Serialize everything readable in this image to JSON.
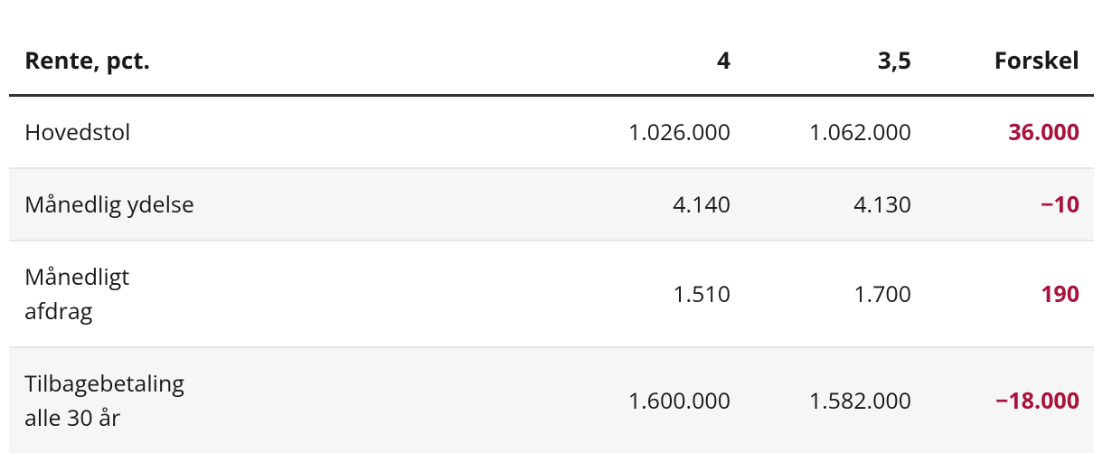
{
  "table": {
    "header": [
      "Rente, pct.",
      "4",
      "3,5",
      "Forskel"
    ],
    "rows": [
      [
        [
          "Hovedstol"
        ],
        "1.026.000",
        "1.062.000",
        "36.000"
      ],
      [
        [
          "Månedlig ydelse"
        ],
        "4.140",
        "4.130",
        "−10"
      ],
      [
        [
          "Månedligt",
          "afdrag"
        ],
        "1.510",
        "1.700",
        "190"
      ],
      [
        [
          "Tilbagebetaling",
          "alle 30 år"
        ],
        "1.600.000",
        "1.582.000",
        "−18.000"
      ]
    ]
  }
}
